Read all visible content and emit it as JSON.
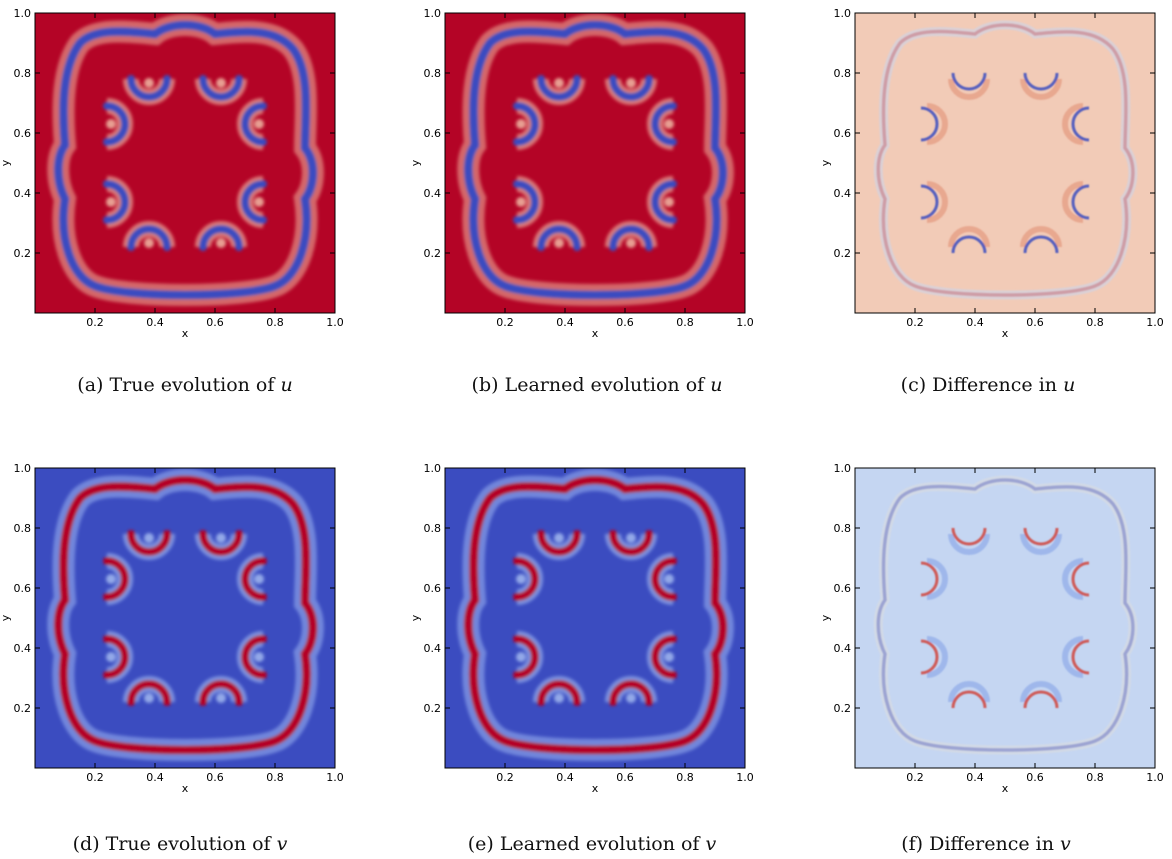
{
  "figure": {
    "panels": [
      {
        "id": "a",
        "caption_prefix": "(a)",
        "caption_text": "True evolution of",
        "variable": "u",
        "field": "u_true",
        "xlabel": "x",
        "ylabel": "y"
      },
      {
        "id": "b",
        "caption_prefix": "(b)",
        "caption_text": "Learned evolution of",
        "variable": "u",
        "field": "u_learned",
        "xlabel": "x",
        "ylabel": "y"
      },
      {
        "id": "c",
        "caption_prefix": "(c)",
        "caption_text": "Difference in",
        "variable": "u",
        "field": "u_diff",
        "xlabel": "x",
        "ylabel": "y"
      },
      {
        "id": "d",
        "caption_prefix": "(d)",
        "caption_text": "True evolution of",
        "variable": "v",
        "field": "v_true",
        "xlabel": "x",
        "ylabel": "y"
      },
      {
        "id": "e",
        "caption_prefix": "(e)",
        "caption_text": "Learned evolution of",
        "variable": "v",
        "field": "v_learned",
        "xlabel": "x",
        "ylabel": "y"
      },
      {
        "id": "f",
        "caption_prefix": "(f)",
        "caption_text": "Difference in",
        "variable": "v",
        "field": "v_diff",
        "xlabel": "x",
        "ylabel": "y"
      }
    ]
  },
  "chart_data": {
    "type": "heatmap",
    "xlim": [
      0.0,
      1.0
    ],
    "ylim": [
      0.0,
      1.0
    ],
    "x_ticks": [
      "0.2",
      "0.4",
      "0.6",
      "0.8",
      "1.0"
    ],
    "y_ticks": [
      "0.2",
      "0.4",
      "0.6",
      "0.8",
      "1.0"
    ],
    "colormap": "coolwarm",
    "colors": {
      "u_background": "#b40426",
      "u_pattern": "#3b4cc0",
      "v_background": "#3b4cc0",
      "v_pattern": "#b40426",
      "u_diff_background": "#f2cbb7",
      "v_diff_background": "#c5d6f2",
      "diff_red": "#d0473d",
      "diff_blue": "#3b4cc0"
    }
  }
}
